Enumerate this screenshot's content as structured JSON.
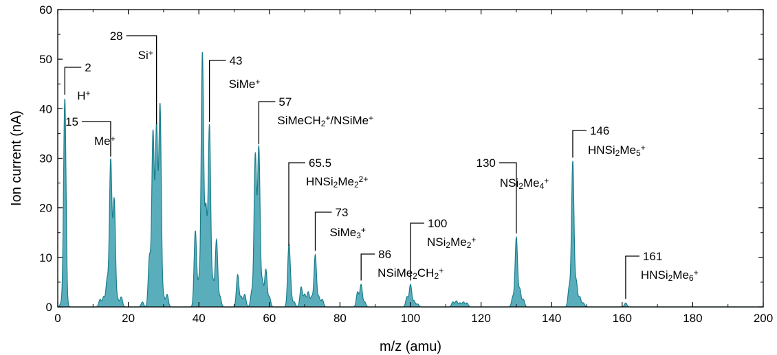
{
  "chart_data": {
    "type": "area",
    "xlabel": "m/z (amu)",
    "ylabel": "Ion current (nA)",
    "xlim": [
      0,
      200
    ],
    "ylim": [
      0,
      60
    ],
    "xticks": [
      0,
      20,
      40,
      60,
      80,
      100,
      120,
      140,
      160,
      180,
      200
    ],
    "yticks": [
      0,
      10,
      20,
      30,
      40,
      50,
      60
    ],
    "grid": false,
    "legend": "none",
    "colors": {
      "fill": "#5aaebb",
      "line": "#1b7d8c"
    },
    "peaks": [
      {
        "x": 1.0,
        "y": 0.8
      },
      {
        "x": 2.0,
        "y": 42.0
      },
      {
        "x": 12.0,
        "y": 1.5
      },
      {
        "x": 13.0,
        "y": 2.0
      },
      {
        "x": 14.0,
        "y": 5.5
      },
      {
        "x": 15.0,
        "y": 29.5
      },
      {
        "x": 16.0,
        "y": 21.5
      },
      {
        "x": 17.0,
        "y": 1.5
      },
      {
        "x": 18.0,
        "y": 2.0
      },
      {
        "x": 24.0,
        "y": 1.0
      },
      {
        "x": 26.0,
        "y": 10.0
      },
      {
        "x": 27.0,
        "y": 35.0
      },
      {
        "x": 28.0,
        "y": 36.0
      },
      {
        "x": 29.0,
        "y": 40.5
      },
      {
        "x": 30.0,
        "y": 2.0
      },
      {
        "x": 31.0,
        "y": 2.5
      },
      {
        "x": 39.0,
        "y": 15.3
      },
      {
        "x": 40.0,
        "y": 5.0
      },
      {
        "x": 41.0,
        "y": 51.0
      },
      {
        "x": 42.0,
        "y": 19.5
      },
      {
        "x": 43.0,
        "y": 36.5
      },
      {
        "x": 44.0,
        "y": 5.0
      },
      {
        "x": 45.0,
        "y": 13.5
      },
      {
        "x": 46.0,
        "y": 2.0
      },
      {
        "x": 51.0,
        "y": 6.5
      },
      {
        "x": 52.0,
        "y": 2.0
      },
      {
        "x": 53.0,
        "y": 2.5
      },
      {
        "x": 55.0,
        "y": 3.0
      },
      {
        "x": 56.0,
        "y": 30.5
      },
      {
        "x": 57.0,
        "y": 32.0
      },
      {
        "x": 58.0,
        "y": 5.0
      },
      {
        "x": 59.0,
        "y": 7.5
      },
      {
        "x": 60.0,
        "y": 2.0
      },
      {
        "x": 65.5,
        "y": 11.5
      },
      {
        "x": 66.0,
        "y": 3.0
      },
      {
        "x": 67.0,
        "y": 1.0
      },
      {
        "x": 69.0,
        "y": 4.0
      },
      {
        "x": 70.0,
        "y": 2.5
      },
      {
        "x": 71.0,
        "y": 3.0
      },
      {
        "x": 72.0,
        "y": 2.0
      },
      {
        "x": 73.0,
        "y": 10.5
      },
      {
        "x": 74.0,
        "y": 2.0
      },
      {
        "x": 75.0,
        "y": 1.5
      },
      {
        "x": 85.0,
        "y": 3.0
      },
      {
        "x": 86.0,
        "y": 4.5
      },
      {
        "x": 87.0,
        "y": 1.0
      },
      {
        "x": 99.0,
        "y": 2.0
      },
      {
        "x": 100.0,
        "y": 4.5
      },
      {
        "x": 101.0,
        "y": 1.2
      },
      {
        "x": 102.0,
        "y": 0.6
      },
      {
        "x": 112.0,
        "y": 1.0
      },
      {
        "x": 113.0,
        "y": 1.2
      },
      {
        "x": 114.0,
        "y": 0.8
      },
      {
        "x": 115.0,
        "y": 1.0
      },
      {
        "x": 116.0,
        "y": 0.8
      },
      {
        "x": 129.0,
        "y": 2.0
      },
      {
        "x": 130.0,
        "y": 14.0
      },
      {
        "x": 131.0,
        "y": 3.5
      },
      {
        "x": 132.0,
        "y": 1.5
      },
      {
        "x": 145.0,
        "y": 4.0
      },
      {
        "x": 146.0,
        "y": 29.3
      },
      {
        "x": 147.0,
        "y": 5.0
      },
      {
        "x": 148.0,
        "y": 2.0
      },
      {
        "x": 149.0,
        "y": 0.8
      },
      {
        "x": 161.0,
        "y": 0.8
      }
    ],
    "annotations": [
      {
        "mass": "2",
        "x": 2,
        "y": 42,
        "label": [
          [
            "H",
            ""
          ],
          [
            "+",
            "sup"
          ]
        ]
      },
      {
        "mass": "15",
        "x": 15,
        "y": 29.5,
        "label": [
          [
            "Me",
            ""
          ],
          [
            "+",
            "sup"
          ]
        ]
      },
      {
        "mass": "28",
        "x": 28,
        "y": 36,
        "label": [
          [
            "Si",
            ""
          ],
          [
            "+",
            "sup"
          ]
        ]
      },
      {
        "mass": "43",
        "x": 43,
        "y": 36.5,
        "label": [
          [
            "SiMe",
            ""
          ],
          [
            "+",
            "sup"
          ]
        ]
      },
      {
        "mass": "57",
        "x": 57,
        "y": 32,
        "label": [
          [
            "SiMeCH",
            ""
          ],
          [
            "2",
            "sub"
          ],
          [
            "+",
            "sup"
          ],
          [
            "/NSiMe",
            ""
          ],
          [
            "+",
            "sup"
          ]
        ]
      },
      {
        "mass": "65.5",
        "x": 65.5,
        "y": 11.5,
        "label": [
          [
            "HNSi",
            ""
          ],
          [
            "2",
            "sub"
          ],
          [
            "Me",
            ""
          ],
          [
            "2",
            "sub"
          ],
          [
            "2+",
            "sup"
          ]
        ]
      },
      {
        "mass": "73",
        "x": 73,
        "y": 10.5,
        "label": [
          [
            "SiMe",
            ""
          ],
          [
            "3",
            "sub"
          ],
          [
            "+",
            "sup"
          ]
        ]
      },
      {
        "mass": "86",
        "x": 86,
        "y": 4.5,
        "label": [
          [
            "NSiMe",
            ""
          ],
          [
            "2",
            "sub"
          ],
          [
            "CH",
            ""
          ],
          [
            "2",
            "sub"
          ],
          [
            "+",
            "sup"
          ]
        ]
      },
      {
        "mass": "100",
        "x": 100,
        "y": 4.5,
        "label": [
          [
            "NSi",
            ""
          ],
          [
            "2",
            "sub"
          ],
          [
            "Me",
            ""
          ],
          [
            "2",
            "sub"
          ],
          [
            "+",
            "sup"
          ]
        ]
      },
      {
        "mass": "130",
        "x": 130,
        "y": 14,
        "label": [
          [
            "NSi",
            ""
          ],
          [
            "2",
            "sub"
          ],
          [
            "Me",
            ""
          ],
          [
            "4",
            "sub"
          ],
          [
            "+",
            "sup"
          ]
        ]
      },
      {
        "mass": "146",
        "x": 146,
        "y": 29.3,
        "label": [
          [
            "HNSi",
            ""
          ],
          [
            "2",
            "sub"
          ],
          [
            "Me",
            ""
          ],
          [
            "5",
            "sub"
          ],
          [
            "+",
            "sup"
          ]
        ]
      },
      {
        "mass": "161",
        "x": 161,
        "y": 0.8,
        "label": [
          [
            "HNSi",
            ""
          ],
          [
            "2",
            "sub"
          ],
          [
            "Me",
            ""
          ],
          [
            "6",
            "sub"
          ],
          [
            "+",
            "sup"
          ]
        ]
      }
    ]
  }
}
